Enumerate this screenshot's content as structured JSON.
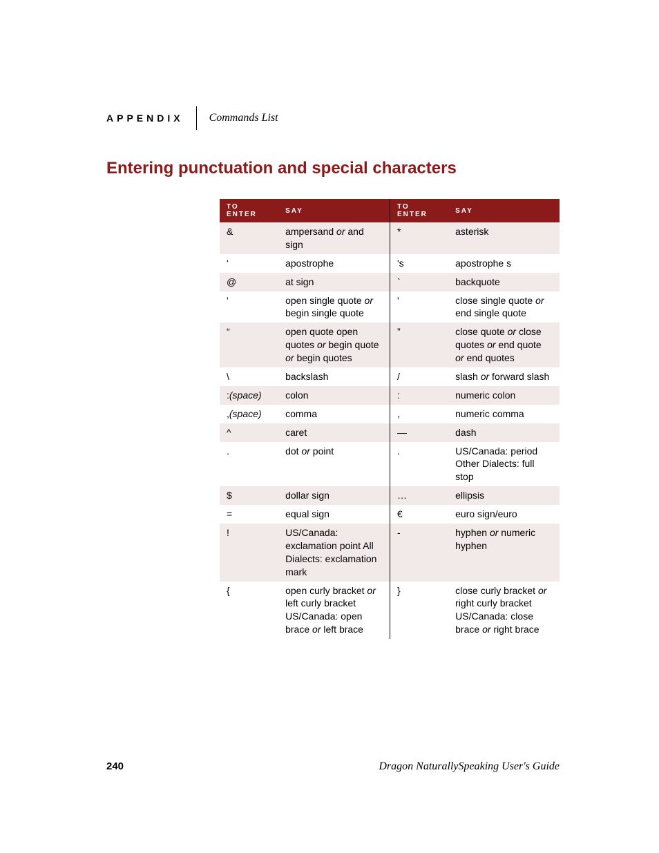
{
  "header": {
    "appendix": "APPENDIX",
    "title": "Commands List"
  },
  "section_title": "Entering punctuation and special characters",
  "table": {
    "headers": {
      "enter1": "To enter",
      "say1": "Say",
      "enter2": "To enter",
      "say2": "Say"
    },
    "rows": [
      {
        "e1": "&",
        "s1": "ampersand <em class='or'>or</em> and sign",
        "e2": "*",
        "s2": "asterisk"
      },
      {
        "e1": "'",
        "s1": "apostrophe",
        "e2": "'s",
        "s2": "apostrophe s"
      },
      {
        "e1": "@",
        "s1": "at sign",
        "e2": "`",
        "s2": "backquote"
      },
      {
        "e1": "'",
        "s1": "open single quote <em class='or'>or</em> begin single quote",
        "e2": "'",
        "s2": "close single quote <em class='or'>or</em> end single quote"
      },
      {
        "e1": "“",
        "s1": "open quote open quotes <em class='or'>or</em> begin quote <em class='or'>or</em> begin quotes",
        "e2": "”",
        "s2": "close quote <em class='or'>or</em> close quotes <em class='or'>or</em> end quote <em class='or'>or</em> end quotes"
      },
      {
        "e1": "\\",
        "s1": "backslash",
        "e2": "/",
        "s2": "slash <em class='or'>or</em> forward slash"
      },
      {
        "e1": ":<em class='or'>(space)</em>",
        "s1": "colon",
        "e2": ":",
        "s2": "numeric colon"
      },
      {
        "e1": ",<em class='or'>(space)</em>",
        "s1": "comma",
        "e2": ",",
        "s2": "numeric comma"
      },
      {
        "e1": "^",
        "s1": "caret",
        "e2": "—",
        "s2": "dash"
      },
      {
        "e1": ".",
        "s1": "dot <em class='or'>or</em> point",
        "e2": ".",
        "s2": "US/Canada: period Other Dialects: full stop"
      },
      {
        "e1": "$",
        "s1": "dollar sign",
        "e2": "…",
        "s2": "ellipsis"
      },
      {
        "e1": "=",
        "s1": "equal sign",
        "e2": "€",
        "s2": "euro sign/euro"
      },
      {
        "e1": "!",
        "s1": "US/Canada: exclamation point All Dialects: exclamation mark",
        "e2": "-",
        "s2": "hyphen <em class='or'>or</em> numeric hyphen"
      },
      {
        "e1": "{",
        "s1": "open curly bracket <em class='or'>or</em> left curly bracket US/Canada: open brace <em class='or'>or</em> left brace",
        "e2": "}",
        "s2": "close curly bracket <em class='or'>or</em> right curly bracket US/Canada: close brace <em class='or'>or</em> right brace"
      }
    ]
  },
  "footer": {
    "page": "240",
    "guide": "Dragon NaturallySpeaking User's Guide"
  },
  "colors": {
    "header_red": "#8b1a1a",
    "row_tint": "#f2e9e9",
    "background": "#ffffff"
  }
}
